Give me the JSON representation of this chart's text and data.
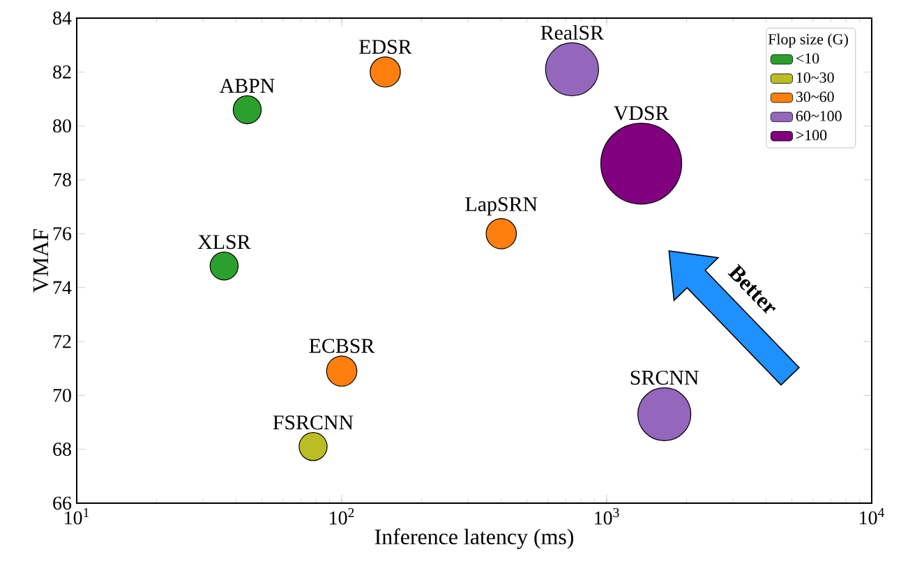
{
  "chart_data": {
    "type": "bubble",
    "xlabel": "Inference latency (ms)",
    "ylabel": "VMAF",
    "legend_title": "Flop size (G)",
    "legend": "top right",
    "log": "x",
    "grid": false,
    "xlim": [
      10,
      10000
    ],
    "xticks": [
      {
        "value": 10,
        "label": "10$^{1}$"
      },
      {
        "value": 100,
        "label": "10$^{2}$"
      },
      {
        "value": 1000,
        "label": "10$^{3}$"
      },
      {
        "value": 10000,
        "label": "10$^{4}$"
      }
    ],
    "ylim": [
      66,
      84
    ],
    "yticks": [
      66,
      68,
      70,
      72,
      74,
      76,
      78,
      80,
      82,
      84
    ],
    "series": [
      {
        "name": "<10",
        "color": "#2ca02c",
        "x": [
          44,
          36
        ],
        "values": [
          80.6,
          74.8
        ],
        "sizes": [
          0.12,
          0.12
        ]
      },
      {
        "name": "10~30",
        "color": "#bcbd22",
        "x": [
          78
        ],
        "values": [
          68.1
        ],
        "sizes": [
          0.12
        ]
      },
      {
        "name": "30~60",
        "color": "#ff7f0e",
        "x": [
          146,
          400,
          100
        ],
        "values": [
          82.0,
          76.0,
          70.9
        ],
        "sizes": [
          0.14,
          0.14,
          0.14
        ]
      },
      {
        "name": "60~100",
        "color": "#9467bd",
        "x": [
          740,
          1650
        ],
        "values": [
          82.1,
          69.3
        ],
        "sizes": [
          0.43,
          0.43
        ]
      },
      {
        "name": ">100",
        "color": "#800080",
        "x": [
          1350
        ],
        "values": [
          78.6
        ],
        "sizes": [
          1
        ]
      }
    ],
    "annotations": [
      {
        "text": "ABPN",
        "x": 44,
        "y": 80.6
      },
      {
        "text": "XLSR",
        "x": 36,
        "y": 74.8
      },
      {
        "text": "FSRCNN",
        "x": 78,
        "y": 68.1
      },
      {
        "text": "EDSR",
        "x": 146,
        "y": 82.0
      },
      {
        "text": "LapSRN",
        "x": 400,
        "y": 76.0
      },
      {
        "text": "ECBSR",
        "x": 100,
        "y": 70.9
      },
      {
        "text": "RealSR",
        "x": 740,
        "y": 82.1
      },
      {
        "text": "SRCNN",
        "x": 1650,
        "y": 69.3
      },
      {
        "text": "VDSR",
        "x": 1350,
        "y": 78.6
      },
      "Better"
    ]
  }
}
